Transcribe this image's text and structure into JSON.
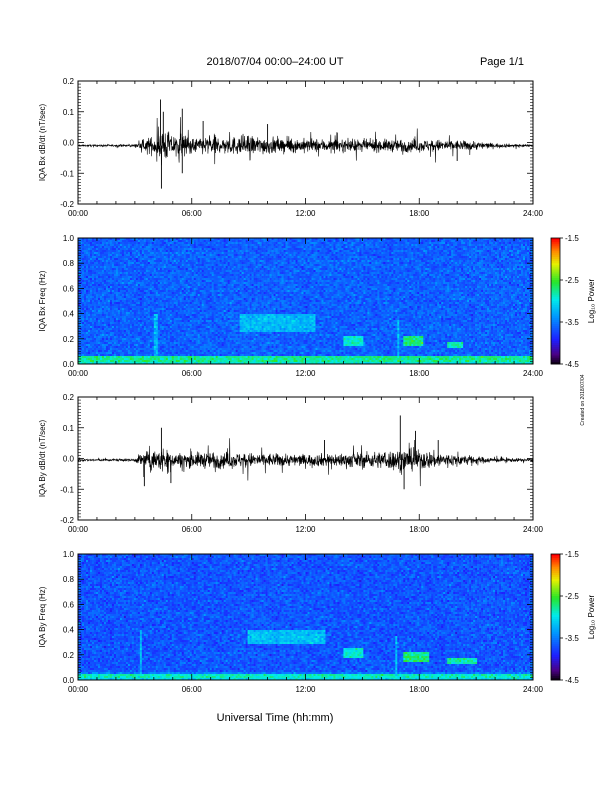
{
  "header": {
    "title": "2018/07/04  00:00–24:00 UT",
    "page": "Page 1/1"
  },
  "footer": {
    "xlabel": "Universal Time (hh:mm)"
  },
  "side_note": "Created on 2018/07/04",
  "chart_data": [
    {
      "type": "line",
      "id": "bx-dbdt",
      "ylabel": "IQA Bx dB/dt (nT/sec)",
      "xlim": [
        0,
        24
      ],
      "ylim": [
        -0.2,
        0.2
      ],
      "xticks": [
        "00:00",
        "06:00",
        "12:00",
        "18:00",
        "24:00"
      ],
      "yticks": [
        "-0.2",
        "-0.1",
        "0.0",
        "0.1",
        "0.2"
      ],
      "baseline": -0.01,
      "color": "#000000",
      "activity_envelope": [
        {
          "x": 0,
          "amp": 0.006
        },
        {
          "x": 3.0,
          "amp": 0.008
        },
        {
          "x": 3.3,
          "amp": 0.03
        },
        {
          "x": 4.1,
          "amp": 0.07
        },
        {
          "x": 4.4,
          "amp": 0.14
        },
        {
          "x": 5.0,
          "amp": 0.07
        },
        {
          "x": 5.5,
          "amp": 0.09
        },
        {
          "x": 6.0,
          "amp": 0.05
        },
        {
          "x": 7.0,
          "amp": 0.07
        },
        {
          "x": 8.0,
          "amp": 0.06
        },
        {
          "x": 9.0,
          "amp": 0.07
        },
        {
          "x": 11.0,
          "amp": 0.05
        },
        {
          "x": 13.5,
          "amp": 0.045
        },
        {
          "x": 15.0,
          "amp": 0.04
        },
        {
          "x": 17.0,
          "amp": 0.045
        },
        {
          "x": 19.5,
          "amp": 0.04
        },
        {
          "x": 21.0,
          "amp": 0.03
        },
        {
          "x": 22.0,
          "amp": 0.015
        },
        {
          "x": 24.0,
          "amp": 0.008
        }
      ],
      "spikes": [
        {
          "x": 4.35,
          "y": 0.14
        },
        {
          "x": 4.4,
          "y": -0.15
        },
        {
          "x": 4.5,
          "y": 0.1
        },
        {
          "x": 5.5,
          "y": 0.11
        },
        {
          "x": 5.5,
          "y": -0.1
        },
        {
          "x": 6.6,
          "y": 0.07
        },
        {
          "x": 10.0,
          "y": 0.06
        },
        {
          "x": 20.0,
          "y": -0.06
        }
      ]
    },
    {
      "type": "heatmap",
      "id": "bx-spec",
      "ylabel": "IQA Bx Freq (Hz)",
      "xlim": [
        0,
        24
      ],
      "ylim": [
        0,
        1.0
      ],
      "xticks": [
        "00:00",
        "06:00",
        "12:00",
        "18:00",
        "24:00"
      ],
      "yticks": [
        "0.0",
        "0.2",
        "0.4",
        "0.6",
        "0.8",
        "1.0"
      ],
      "colorbar": {
        "label": "Log₁₀ Power",
        "range": [
          -4.5,
          -1.5
        ],
        "ticks": [
          "-1.5",
          "-2.5",
          "-3.5",
          "-4.5"
        ]
      },
      "background_level": -3.6,
      "features": [
        {
          "type": "band",
          "t0": 0,
          "t1": 24,
          "f0": 0.0,
          "f1": 0.06,
          "level": -2.9
        },
        {
          "type": "patch",
          "t0": 8.5,
          "t1": 12.5,
          "f0": 0.25,
          "f1": 0.4,
          "level": -3.2
        },
        {
          "type": "patch",
          "t0": 14.0,
          "t1": 15.0,
          "f0": 0.15,
          "f1": 0.22,
          "level": -2.9
        },
        {
          "type": "patch",
          "t0": 17.2,
          "t1": 18.2,
          "f0": 0.15,
          "f1": 0.22,
          "level": -2.7
        },
        {
          "type": "patch",
          "t0": 19.5,
          "t1": 20.3,
          "f0": 0.12,
          "f1": 0.18,
          "level": -2.8
        },
        {
          "type": "vline",
          "t": 4.1,
          "f0": 0.0,
          "f1": 0.4,
          "level": -3.2
        },
        {
          "type": "vline",
          "t": 16.9,
          "f0": 0.0,
          "f1": 0.35,
          "level": -3.2
        }
      ]
    },
    {
      "type": "line",
      "id": "by-dbdt",
      "ylabel": "IQA By dB/dt (nT/sec)",
      "xlim": [
        0,
        24
      ],
      "ylim": [
        -0.2,
        0.2
      ],
      "xticks": [
        "00:00",
        "06:00",
        "12:00",
        "18:00",
        "24:00"
      ],
      "yticks": [
        "-0.2",
        "-0.1",
        "0.0",
        "0.1",
        "0.2"
      ],
      "baseline": -0.005,
      "color": "#000000",
      "activity_envelope": [
        {
          "x": 0,
          "amp": 0.006
        },
        {
          "x": 3.0,
          "amp": 0.01
        },
        {
          "x": 3.4,
          "amp": 0.06
        },
        {
          "x": 4.0,
          "amp": 0.06
        },
        {
          "x": 4.4,
          "amp": 0.09
        },
        {
          "x": 5.0,
          "amp": 0.05
        },
        {
          "x": 6.0,
          "amp": 0.05
        },
        {
          "x": 7.0,
          "amp": 0.06
        },
        {
          "x": 9.0,
          "amp": 0.05
        },
        {
          "x": 12.0,
          "amp": 0.04
        },
        {
          "x": 14.0,
          "amp": 0.05
        },
        {
          "x": 16.0,
          "amp": 0.06
        },
        {
          "x": 17.0,
          "amp": 0.08
        },
        {
          "x": 18.0,
          "amp": 0.07
        },
        {
          "x": 20.0,
          "amp": 0.04
        },
        {
          "x": 21.5,
          "amp": 0.02
        },
        {
          "x": 24.0,
          "amp": 0.008
        }
      ],
      "spikes": [
        {
          "x": 4.4,
          "y": 0.1
        },
        {
          "x": 3.5,
          "y": -0.09
        },
        {
          "x": 4.9,
          "y": -0.08
        },
        {
          "x": 17.0,
          "y": 0.14
        },
        {
          "x": 17.2,
          "y": -0.1
        },
        {
          "x": 17.8,
          "y": 0.09
        },
        {
          "x": 19.0,
          "y": 0.06
        },
        {
          "x": 13.0,
          "y": 0.06
        }
      ]
    },
    {
      "type": "heatmap",
      "id": "by-spec",
      "ylabel": "IQA By Freq (Hz)",
      "xlim": [
        0,
        24
      ],
      "ylim": [
        0,
        1.0
      ],
      "xticks": [
        "00:00",
        "06:00",
        "12:00",
        "18:00",
        "24:00"
      ],
      "yticks": [
        "0.0",
        "0.2",
        "0.4",
        "0.6",
        "0.8",
        "1.0"
      ],
      "colorbar": {
        "label": "Log₁₀ Power",
        "range": [
          -4.5,
          -1.5
        ],
        "ticks": [
          "-1.5",
          "-2.5",
          "-3.5",
          "-4.5"
        ]
      },
      "background_level": -3.65,
      "features": [
        {
          "type": "band",
          "t0": 0,
          "t1": 24,
          "f0": 0.0,
          "f1": 0.05,
          "level": -3.0
        },
        {
          "type": "patch",
          "t0": 9.0,
          "t1": 13.0,
          "f0": 0.28,
          "f1": 0.4,
          "level": -3.15
        },
        {
          "type": "patch",
          "t0": 14.0,
          "t1": 15.0,
          "f0": 0.18,
          "f1": 0.26,
          "level": -2.9
        },
        {
          "type": "patch",
          "t0": 17.2,
          "t1": 18.5,
          "f0": 0.15,
          "f1": 0.22,
          "level": -2.7
        },
        {
          "type": "patch",
          "t0": 19.5,
          "t1": 21.0,
          "f0": 0.12,
          "f1": 0.18,
          "level": -2.8
        },
        {
          "type": "vline",
          "t": 3.3,
          "f0": 0.0,
          "f1": 0.4,
          "level": -3.2
        },
        {
          "type": "vline",
          "t": 16.8,
          "f0": 0.0,
          "f1": 0.35,
          "level": -3.2
        }
      ]
    }
  ]
}
